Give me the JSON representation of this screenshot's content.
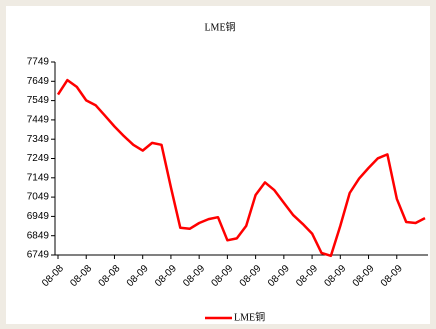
{
  "chart_data": {
    "type": "line",
    "title": "LME铜",
    "categories": [
      "08-08",
      null,
      null,
      "08-08",
      null,
      null,
      "08-08",
      null,
      null,
      "08-09",
      null,
      null,
      "08-09",
      null,
      null,
      "08-09",
      null,
      null,
      "08-09",
      null,
      null,
      "08-09",
      null,
      null,
      "08-09",
      null,
      null,
      "08-09",
      null,
      null,
      "08-09",
      null,
      null,
      "08-09",
      null,
      null,
      "08-09",
      null,
      null,
      null
    ],
    "series": [
      {
        "name": "LME铜",
        "color": "#ff0000",
        "values": [
          7580,
          7655,
          7620,
          7550,
          7525,
          7470,
          7415,
          7365,
          7320,
          7290,
          7330,
          7320,
          7100,
          6890,
          6885,
          6915,
          6935,
          6945,
          6825,
          6835,
          6900,
          7060,
          7125,
          7085,
          7020,
          6955,
          6910,
          6860,
          6760,
          6745,
          6900,
          7070,
          7145,
          7200,
          7250,
          7270,
          7040,
          6920,
          6915,
          6940
        ]
      }
    ],
    "ylim": [
      6749,
      7749
    ],
    "yticks": [
      6749,
      6849,
      6949,
      7049,
      7149,
      7249,
      7349,
      7449,
      7549,
      7649,
      7749
    ],
    "grid": false,
    "legend": "bottom"
  }
}
